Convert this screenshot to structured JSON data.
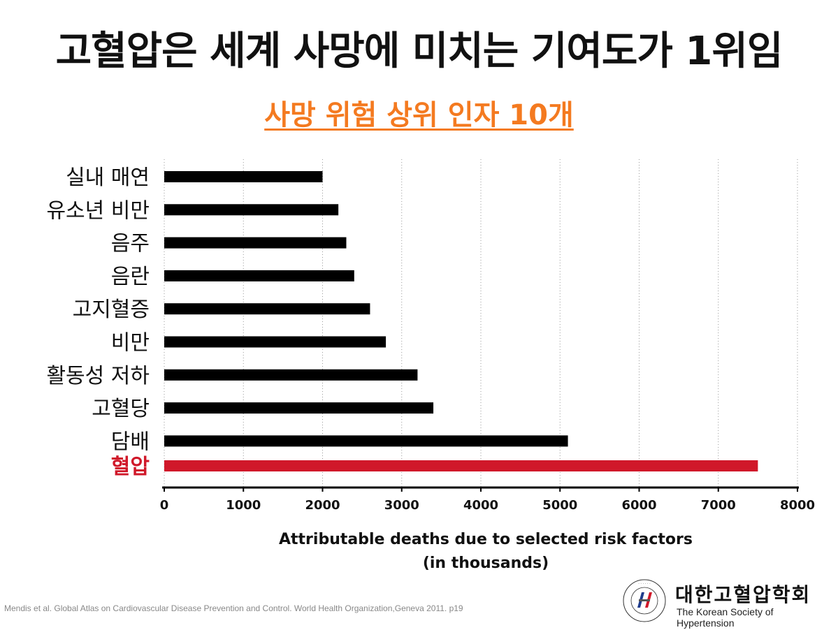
{
  "title": "고혈압은 세계 사망에 미치는 기여도가 1위임",
  "subtitle": "사망 위험 상위 인자 10개",
  "colors": {
    "accent": "#f47a20",
    "highlight": "#d0182a",
    "bar": "#000000",
    "grid": "#999999"
  },
  "chart_data": {
    "type": "bar",
    "orientation": "horizontal",
    "categories": [
      "실내 매연",
      "유소년 비만",
      "음주",
      "음란",
      "고지혈증",
      "비만",
      "활동성 저하",
      "고혈당",
      "담배",
      "혈압"
    ],
    "values": [
      2000,
      2200,
      2300,
      2400,
      2600,
      2800,
      3200,
      3400,
      5100,
      7500
    ],
    "highlight_category": "혈압",
    "xlabel": "Attributable deaths due to selected risk factors",
    "xlabel_unit": "(in thousands)",
    "xticks": [
      "0",
      "1000",
      "2000",
      "3000",
      "4000",
      "5000",
      "6000",
      "7000",
      "8000"
    ],
    "xlim": [
      0,
      8000
    ],
    "grid": "vertical dotted"
  },
  "citation": "Mendis et al. Global Atlas on Cardiovascular Disease Prevention and Control. World Health Organization,Geneva 2011. p19",
  "logo": {
    "name_ko": "대한고혈압학회",
    "name_en": "The Korean Society of Hypertension",
    "seal_text": "대한고혈압학회 THE KOREAN SOCIETY OF HYPERTENSION"
  }
}
